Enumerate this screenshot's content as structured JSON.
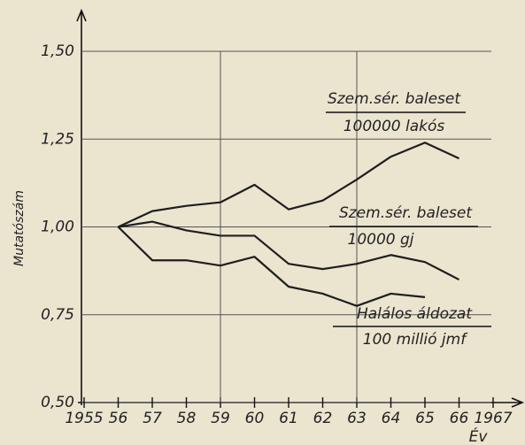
{
  "chart_data": {
    "type": "line",
    "x_label": "Év",
    "y_label": "Mutatószám",
    "x": [
      1956,
      1957,
      1958,
      1959,
      1960,
      1961,
      1962,
      1963,
      1964,
      1965,
      1966
    ],
    "xlim": [
      1955,
      1967
    ],
    "xticks": [
      {
        "value": 1955,
        "label": "1955"
      },
      {
        "value": 1956,
        "label": "56"
      },
      {
        "value": 1957,
        "label": "57"
      },
      {
        "value": 1958,
        "label": "58"
      },
      {
        "value": 1959,
        "label": "59"
      },
      {
        "value": 1960,
        "label": "60"
      },
      {
        "value": 1961,
        "label": "61"
      },
      {
        "value": 1962,
        "label": "62"
      },
      {
        "value": 1963,
        "label": "63"
      },
      {
        "value": 1964,
        "label": "64"
      },
      {
        "value": 1965,
        "label": "65"
      },
      {
        "value": 1966,
        "label": "66"
      },
      {
        "value": 1967,
        "label": "1967"
      }
    ],
    "ylim": [
      0.5,
      1.5
    ],
    "yticks": [
      {
        "value": 0.5,
        "label": "0,50"
      },
      {
        "value": 0.75,
        "label": "0,75"
      },
      {
        "value": 1.0,
        "label": "1,00"
      },
      {
        "value": 1.25,
        "label": "1,25"
      },
      {
        "value": 1.5,
        "label": "1,50"
      }
    ],
    "grid": true,
    "x_grid": [
      1959,
      1963
    ],
    "series": [
      {
        "label": {
          "numerator": "Szem.sér. baleset",
          "denominator": "100000 lakós"
        },
        "color": "#1e1e1e",
        "values": [
          1.0,
          1.045,
          1.06,
          1.07,
          1.12,
          1.05,
          1.075,
          1.135,
          1.2,
          1.24,
          1.195
        ]
      },
      {
        "label": {
          "numerator": "Szem.sér. baleset",
          "denominator": "10000 gj"
        },
        "color": "#1e1e1e",
        "values": [
          1.0,
          1.015,
          0.99,
          0.975,
          0.975,
          0.895,
          0.88,
          0.895,
          0.92,
          0.9,
          0.85
        ]
      },
      {
        "label": {
          "numerator": "Halálos áldozat",
          "denominator": "100 millió jmf"
        },
        "color": "#1e1e1e",
        "values": [
          1.0,
          0.905,
          0.905,
          0.89,
          0.915,
          0.83,
          0.81,
          0.775,
          0.81,
          0.8,
          null
        ]
      }
    ]
  }
}
